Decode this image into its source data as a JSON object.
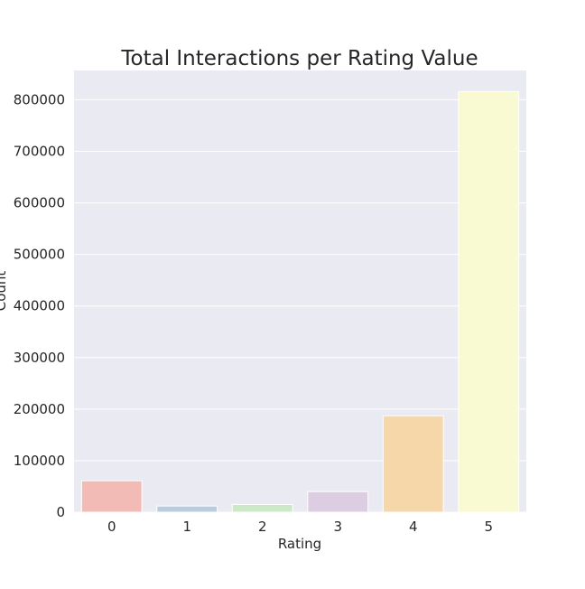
{
  "chart_data": {
    "type": "bar",
    "title": "Total Interactions per Rating Value",
    "xlabel": "Rating",
    "ylabel": "Count",
    "categories": [
      "0",
      "1",
      "2",
      "3",
      "4",
      "5"
    ],
    "values": [
      61000,
      12000,
      15000,
      40000,
      187000,
      816000
    ],
    "colors": [
      "#f3bbb6",
      "#b8cde0",
      "#cde8c6",
      "#dccde3",
      "#f5d7a9",
      "#f9fad2"
    ],
    "ylim": [
      0,
      856800
    ],
    "yticks": [
      0,
      100000,
      200000,
      300000,
      400000,
      500000,
      600000,
      700000,
      800000
    ],
    "ytick_labels": [
      "0",
      "100000",
      "200000",
      "300000",
      "400000",
      "500000",
      "600000",
      "700000",
      "800000"
    ],
    "grid": true,
    "legend": null,
    "background": "#eaeaf2"
  }
}
